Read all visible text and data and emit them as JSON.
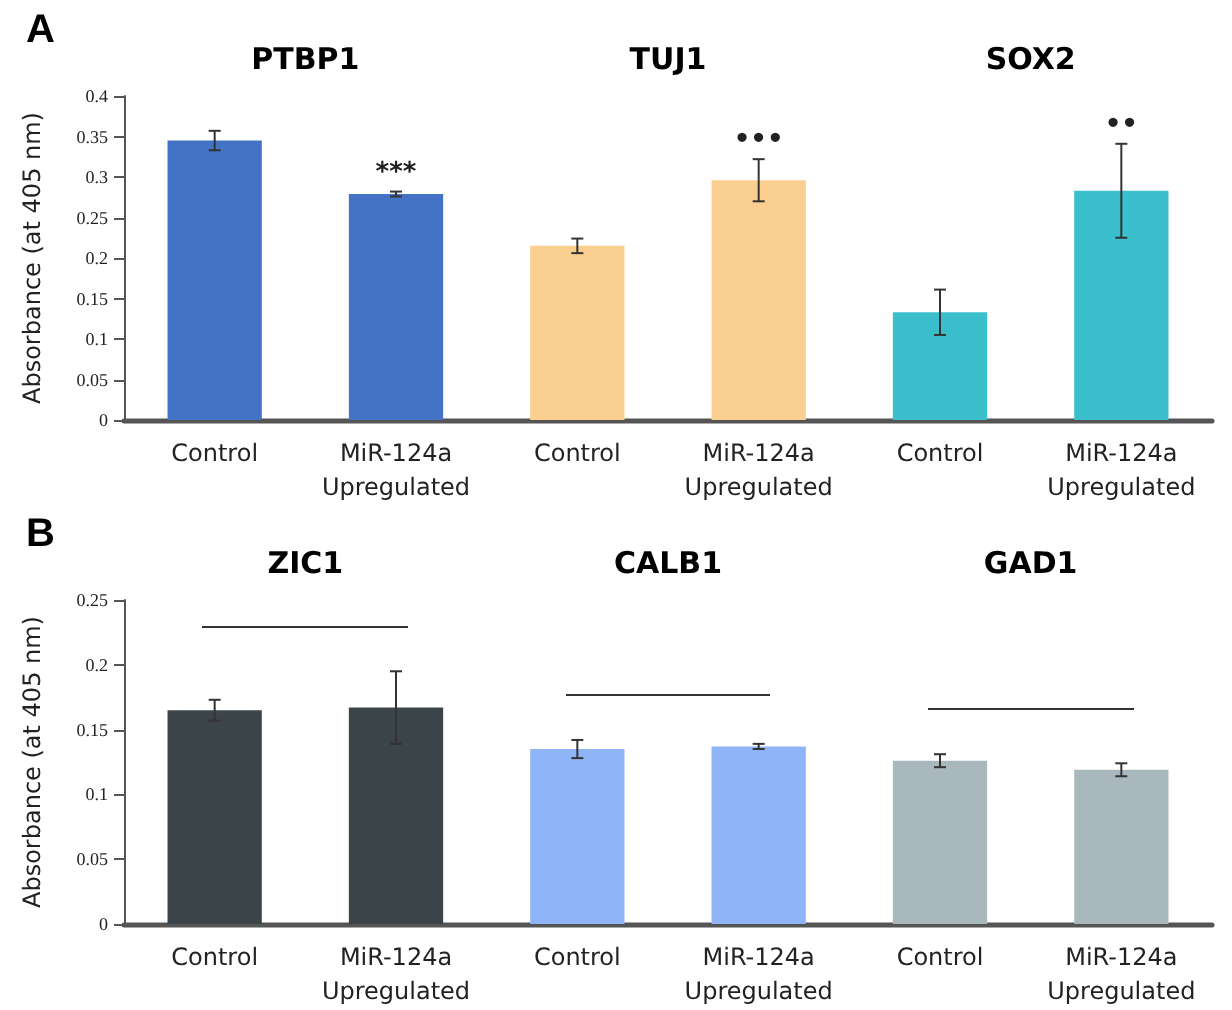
{
  "chart_data": [
    {
      "type": "bar",
      "title": "A",
      "ylabel": "Absorbance (at 405 nm)",
      "categories": [
        "Control",
        "MiR-124a\nUpregulated",
        "Control",
        "MiR-124a\nUpregulated",
        "Control",
        "MiR-124a\nUpregulated"
      ],
      "values": [
        0.345,
        0.279,
        0.215,
        0.296,
        0.133,
        0.283
      ],
      "errors": [
        0.012,
        0.003,
        0.009,
        0.026,
        0.028,
        0.058
      ],
      "colors": [
        "#4472c4",
        "#4472c4",
        "#fbcf90",
        "#fbcf90",
        "#3bbfcc",
        "#3bbfcc"
      ],
      "value_labels": [
        null,
        "***",
        null,
        "•••",
        null,
        "••"
      ],
      "annotations": [
        "PTBP1",
        "TUJ1",
        "SOX2"
      ],
      "ylim": [
        0,
        0.4
      ],
      "yticks": [
        0,
        0.05,
        0.1,
        0.15,
        0.2,
        0.25,
        0.3,
        0.35,
        0.4
      ],
      "grid": false
    },
    {
      "type": "bar",
      "title": "B",
      "ylabel": "Absorbance (at 405 nm)",
      "categories": [
        "Control",
        "MiR-124a\nUpregulated",
        "Control",
        "MiR-124a\nUpregulated",
        "Control",
        "MiR-124a\nUpregulated"
      ],
      "values": [
        0.165,
        0.167,
        0.135,
        0.137,
        0.126,
        0.119
      ],
      "errors": [
        0.008,
        0.028,
        0.007,
        0.002,
        0.005,
        0.005
      ],
      "colors": [
        "#3b4449",
        "#3b4449",
        "#8fb4f7",
        "#8fb4f7",
        "#a9b8bd",
        "#a9b8bd"
      ],
      "annotations": [
        "ZIC1",
        "CALB1",
        "GAD1"
      ],
      "ylim": [
        0,
        0.25
      ],
      "yticks": [
        0,
        0.05,
        0.1,
        0.15,
        0.2,
        0.25
      ],
      "grid": false
    }
  ]
}
